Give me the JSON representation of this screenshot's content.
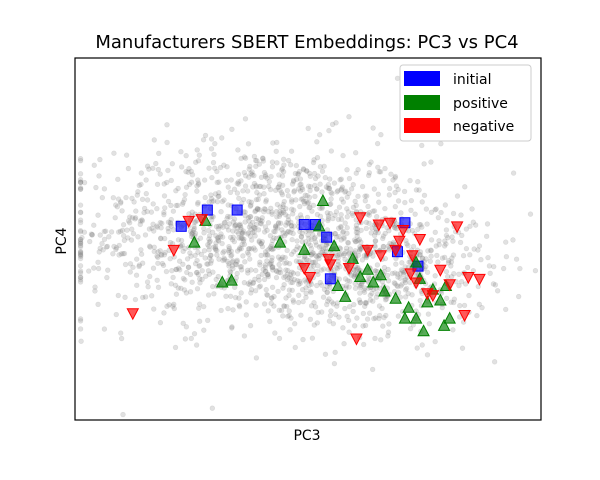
{
  "chart_data": {
    "type": "scatter",
    "title": "Manufacturers SBERT Embeddings: PC3 vs PC4",
    "xlabel": "PC3",
    "ylabel": "PC4",
    "xlim": [
      -1.25,
      1.25
    ],
    "ylim": [
      -1.0,
      1.0
    ],
    "grid": false,
    "ticks": false,
    "legend_position": "top-right",
    "legend": [
      {
        "name": "initial",
        "color": "#0000ff"
      },
      {
        "name": "positive",
        "color": "#008000"
      },
      {
        "name": "negative",
        "color": "#ff0000"
      }
    ],
    "background_points": {
      "color": "#808080",
      "count": 1800,
      "center": [
        -0.28,
        0.03
      ],
      "spread": [
        0.46,
        0.25
      ],
      "secondary_center": [
        0.42,
        -0.16
      ],
      "secondary_spread": [
        0.28,
        0.18
      ]
    },
    "series": [
      {
        "name": "initial",
        "marker": "square",
        "color": "#0000ff",
        "points": [
          [
            -0.68,
            0.07
          ],
          [
            -0.54,
            0.16
          ],
          [
            -0.38,
            0.16
          ],
          [
            -0.02,
            0.08
          ],
          [
            0.04,
            0.08
          ],
          [
            0.1,
            0.01
          ],
          [
            0.52,
            0.09
          ],
          [
            0.48,
            -0.07
          ],
          [
            0.59,
            -0.15
          ],
          [
            0.12,
            -0.22
          ]
        ]
      },
      {
        "name": "positive",
        "marker": "triangle-up",
        "color": "#008000",
        "points": [
          [
            -0.55,
            0.1
          ],
          [
            -0.61,
            -0.02
          ],
          [
            -0.46,
            -0.24
          ],
          [
            -0.41,
            -0.23
          ],
          [
            -0.15,
            -0.02
          ],
          [
            -0.02,
            -0.06
          ],
          [
            0.06,
            0.07
          ],
          [
            0.14,
            -0.04
          ],
          [
            0.24,
            -0.11
          ],
          [
            0.32,
            -0.17
          ],
          [
            0.28,
            -0.21
          ],
          [
            0.35,
            -0.24
          ],
          [
            0.41,
            -0.29
          ],
          [
            0.47,
            -0.33
          ],
          [
            0.58,
            -0.13
          ],
          [
            0.6,
            -0.22
          ],
          [
            0.67,
            -0.28
          ],
          [
            0.71,
            -0.34
          ],
          [
            0.64,
            -0.35
          ],
          [
            0.54,
            -0.38
          ],
          [
            0.76,
            -0.44
          ],
          [
            0.73,
            -0.48
          ],
          [
            0.62,
            -0.51
          ],
          [
            0.58,
            -0.44
          ],
          [
            0.52,
            -0.44
          ],
          [
            0.2,
            -0.32
          ],
          [
            0.16,
            -0.26
          ],
          [
            0.08,
            0.21
          ],
          [
            0.39,
            -0.2
          ],
          [
            0.74,
            -0.26
          ]
        ]
      },
      {
        "name": "negative",
        "marker": "triangle-down",
        "color": "#ff0000",
        "points": [
          [
            -0.72,
            -0.06
          ],
          [
            -0.64,
            0.1
          ],
          [
            -0.57,
            0.11
          ],
          [
            -0.02,
            -0.16
          ],
          [
            0.01,
            -0.21
          ],
          [
            0.12,
            -0.14
          ],
          [
            0.22,
            -0.16
          ],
          [
            0.28,
            0.12
          ],
          [
            0.32,
            -0.06
          ],
          [
            0.38,
            0.08
          ],
          [
            0.44,
            0.09
          ],
          [
            0.47,
            -0.06
          ],
          [
            0.51,
            0.05
          ],
          [
            0.55,
            -0.19
          ],
          [
            0.58,
            -0.24
          ],
          [
            0.64,
            -0.3
          ],
          [
            0.67,
            -0.31
          ],
          [
            0.71,
            -0.17
          ],
          [
            0.76,
            -0.25
          ],
          [
            0.86,
            -0.21
          ],
          [
            0.92,
            -0.22
          ],
          [
            0.84,
            -0.42
          ],
          [
            0.56,
            -0.09
          ],
          [
            0.49,
            -0.01
          ],
          [
            0.8,
            0.07
          ],
          [
            0.26,
            -0.55
          ],
          [
            0.11,
            -0.11
          ],
          [
            0.39,
            -0.09
          ],
          [
            -0.94,
            -0.41
          ],
          [
            0.6,
            0.0
          ]
        ]
      }
    ]
  }
}
